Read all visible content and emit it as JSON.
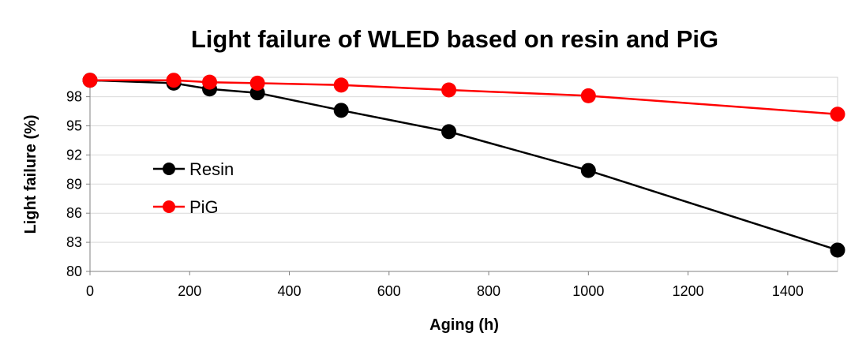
{
  "chart_data": {
    "type": "line",
    "title": "Light failure of WLED based on resin and PiG",
    "xlabel": "Aging (h)",
    "ylabel": "Light failure (%)",
    "xlim": [
      0,
      1500
    ],
    "ylim": [
      80,
      100
    ],
    "xticks": [
      0,
      200,
      400,
      600,
      800,
      1000,
      1200,
      1400
    ],
    "yticks": [
      80,
      83,
      86,
      89,
      92,
      95,
      98
    ],
    "ytick_labels": [
      "80",
      "83",
      "86",
      "89",
      "92",
      "95",
      "98"
    ],
    "grid": "horizontal",
    "legend_position": "left",
    "series": [
      {
        "name": "Resin",
        "color": "#000000",
        "x": [
          0,
          168,
          240,
          336,
          504,
          720,
          1000,
          1500
        ],
        "y": [
          99.7,
          99.4,
          98.8,
          98.4,
          96.6,
          94.4,
          90.4,
          82.2
        ]
      },
      {
        "name": "PiG",
        "color": "#ff0000",
        "x": [
          0,
          168,
          240,
          336,
          504,
          720,
          1000,
          1500
        ],
        "y": [
          99.7,
          99.7,
          99.5,
          99.4,
          99.2,
          98.7,
          98.1,
          96.2
        ]
      }
    ]
  }
}
